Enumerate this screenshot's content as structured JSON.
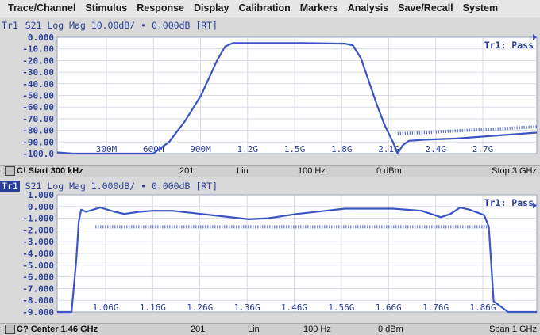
{
  "menu": [
    "Trace/Channel",
    "Stimulus",
    "Response",
    "Display",
    "Calibration",
    "Markers",
    "Analysis",
    "Save/Recall",
    "System"
  ],
  "colors": {
    "trace": "#3a55c4",
    "text": "#2a3f9b",
    "grid": "#d7dbe6",
    "plot_bg": "#ffffff"
  },
  "top": {
    "header": {
      "tag": "Tr1",
      "text": " S21 Log Mag 10.00dB/ • 0.000dB [RT]"
    },
    "pass": "Tr1: Pass",
    "y_ticks": [
      "0.000",
      "-10.00",
      "-20.00",
      "-30.00",
      "-40.00",
      "-50.00",
      "-60.00",
      "-70.00",
      "-80.00",
      "-90.00",
      "-100.0"
    ],
    "x_ticks": [
      "300M",
      "600M",
      "900M",
      "1.2G",
      "1.5G",
      "1.8G",
      "2.1G",
      "2.4G",
      "2.7G"
    ],
    "status": {
      "channel": "C! Start 300 kHz",
      "points": "201",
      "sweep": "Lin",
      "ifbw": "100 Hz",
      "power": "0 dBm",
      "stop": "Stop 3 GHz"
    }
  },
  "bottom": {
    "header": {
      "tag": "Tr1",
      "text": " S21 Log Mag 1.000dB/ • 0.000dB [RT]"
    },
    "pass": "Tr1: Pass",
    "y_ticks": [
      "1.000",
      "0.000",
      "-1.000",
      "-2.000",
      "-3.000",
      "-4.000",
      "-5.000",
      "-6.000",
      "-7.000",
      "-8.000",
      "-9.000"
    ],
    "x_ticks": [
      "1.06G",
      "1.16G",
      "1.26G",
      "1.36G",
      "1.46G",
      "1.56G",
      "1.66G",
      "1.76G",
      "1.86G"
    ],
    "status": {
      "channel": "C? Center 1.46 GHz",
      "points": "201",
      "sweep": "Lin",
      "ifbw": "100 Hz",
      "power": "0 dBm",
      "span": "Span 1 GHz"
    }
  },
  "chart_data": [
    {
      "type": "line",
      "title": "",
      "ylabel": "S21 Log Mag (dB)",
      "xlim_ghz": [
        0.0003,
        3.0
      ],
      "ylim": [
        -100,
        0
      ],
      "series": [
        {
          "x": [
            0.0003,
            0.1,
            0.3,
            0.6,
            0.7,
            0.8,
            0.9,
            0.95,
            1.0,
            1.05,
            1.1,
            1.2,
            1.5,
            1.8,
            1.85,
            1.9,
            1.95,
            2.0,
            2.05,
            2.1,
            2.13,
            2.16,
            2.2,
            2.3,
            2.5,
            2.7,
            3.0
          ],
          "y": [
            -99,
            -100,
            -100,
            -100,
            -90,
            -72,
            -50,
            -35,
            -20,
            -8,
            -5,
            -5,
            -5,
            -5.5,
            -7,
            -18,
            -38,
            -58,
            -76,
            -90,
            -100,
            -93,
            -89,
            -88,
            -87,
            -85,
            -82
          ]
        }
      ],
      "limit_line": {
        "x": [
          2.13,
          3.0
        ],
        "y": [
          -83,
          -77
        ]
      }
    },
    {
      "type": "line",
      "title": "",
      "ylabel": "S21 Log Mag (dB)",
      "xlim_ghz": [
        0.96,
        1.96
      ],
      "ylim": [
        -10,
        1
      ],
      "series": [
        {
          "x": [
            0.96,
            0.99,
            1.0,
            1.005,
            1.01,
            1.02,
            1.05,
            1.08,
            1.1,
            1.13,
            1.16,
            1.2,
            1.26,
            1.3,
            1.36,
            1.4,
            1.46,
            1.56,
            1.66,
            1.72,
            1.76,
            1.78,
            1.8,
            1.82,
            1.85,
            1.86,
            1.87,
            1.9,
            1.96
          ],
          "y": [
            -10,
            -10,
            -5.0,
            -1.5,
            -0.4,
            -0.6,
            -0.2,
            -0.6,
            -0.8,
            -0.6,
            -0.5,
            -0.5,
            -0.8,
            -1.0,
            -1.3,
            -1.2,
            -0.8,
            -0.3,
            -0.3,
            -0.5,
            -1.1,
            -0.8,
            -0.2,
            -0.4,
            -0.9,
            -2.0,
            -9.0,
            -10,
            -10
          ]
        }
      ],
      "limit_line": {
        "x": [
          1.04,
          1.86
        ],
        "y": [
          -2.0,
          -2.0
        ]
      }
    }
  ]
}
